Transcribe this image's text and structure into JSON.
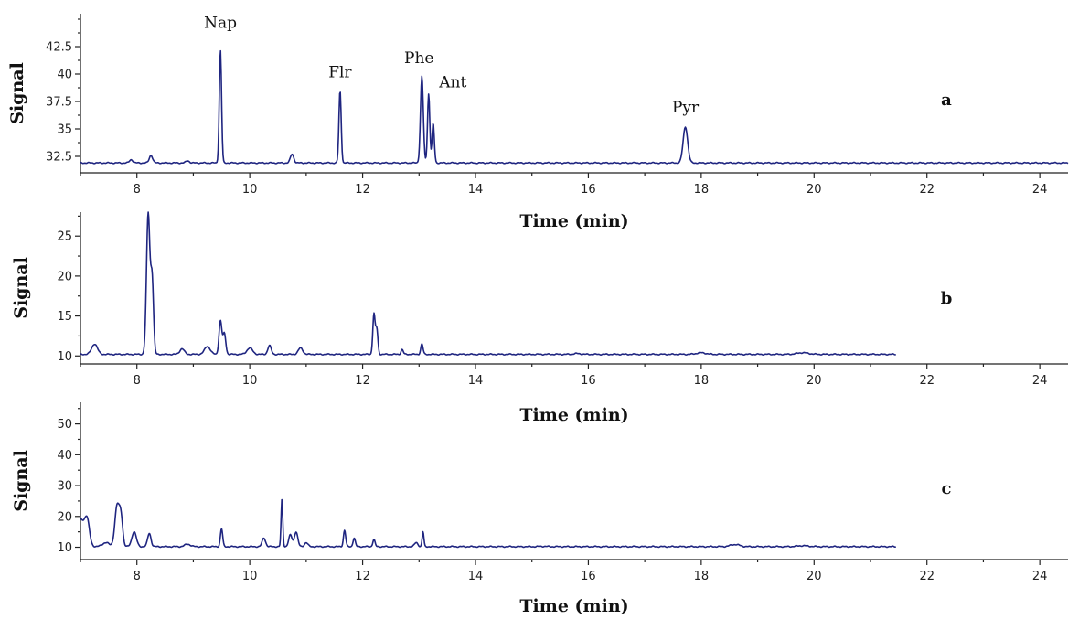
{
  "chart_data": [
    {
      "type": "line",
      "panel": "a",
      "xlabel": "Time (min)",
      "ylabel": "Signal",
      "xlim": [
        7,
        24.5
      ],
      "ylim": [
        31,
        45.5
      ],
      "xticks": [
        8,
        10,
        12,
        14,
        16,
        18,
        20,
        22,
        24
      ],
      "yticks": [
        32.5,
        35,
        37.5,
        40,
        42.5
      ],
      "yticklabels": [
        "32.5",
        "35",
        "37.5",
        "40",
        "42.5"
      ],
      "baseline": 31.9,
      "x_end": 24.5,
      "peaks": [
        {
          "x": 7.9,
          "y": 32.2,
          "w": 0.03
        },
        {
          "x": 8.25,
          "y": 32.6,
          "w": 0.03
        },
        {
          "x": 8.9,
          "y": 32.1,
          "w": 0.03
        },
        {
          "x": 9.48,
          "y": 42.2,
          "w": 0.02
        },
        {
          "x": 10.75,
          "y": 32.7,
          "w": 0.03
        },
        {
          "x": 11.6,
          "y": 38.5,
          "w": 0.02
        },
        {
          "x": 13.05,
          "y": 39.8,
          "w": 0.025
        },
        {
          "x": 13.17,
          "y": 38.2,
          "w": 0.02
        },
        {
          "x": 13.25,
          "y": 35.5,
          "w": 0.02
        },
        {
          "x": 17.72,
          "y": 35.2,
          "w": 0.04
        }
      ],
      "annotations": [
        {
          "text": "Nap",
          "x": 9.48,
          "y": 44.2
        },
        {
          "text": "Flr",
          "x": 11.6,
          "y": 39.7
        },
        {
          "text": "Phe",
          "x": 13.0,
          "y": 41.0
        },
        {
          "text": "Ant",
          "x": 13.6,
          "y": 38.8
        },
        {
          "text": "Pyr",
          "x": 17.72,
          "y": 36.5
        }
      ],
      "panel_label": "a"
    },
    {
      "type": "line",
      "panel": "b",
      "xlabel": "Time (min)",
      "ylabel": "Signal",
      "xlim": [
        7,
        24.5
      ],
      "ylim": [
        9,
        28
      ],
      "xticks": [
        8,
        10,
        12,
        14,
        16,
        18,
        20,
        22,
        24
      ],
      "yticks": [
        10,
        15,
        20,
        25
      ],
      "yticklabels": [
        "10",
        "15",
        "20",
        "25"
      ],
      "baseline": 10.2,
      "x_end": 21.45,
      "peaks": [
        {
          "x": 7.25,
          "y": 11.5,
          "w": 0.05
        },
        {
          "x": 8.2,
          "y": 27.8,
          "w": 0.03
        },
        {
          "x": 8.27,
          "y": 19.5,
          "w": 0.025
        },
        {
          "x": 8.8,
          "y": 10.9,
          "w": 0.04
        },
        {
          "x": 9.25,
          "y": 11.2,
          "w": 0.05
        },
        {
          "x": 9.48,
          "y": 14.4,
          "w": 0.025
        },
        {
          "x": 9.55,
          "y": 12.8,
          "w": 0.025
        },
        {
          "x": 10.0,
          "y": 11.0,
          "w": 0.05
        },
        {
          "x": 10.35,
          "y": 11.3,
          "w": 0.03
        },
        {
          "x": 10.9,
          "y": 11.0,
          "w": 0.04
        },
        {
          "x": 12.2,
          "y": 15.2,
          "w": 0.02
        },
        {
          "x": 12.25,
          "y": 13.4,
          "w": 0.02
        },
        {
          "x": 12.7,
          "y": 10.8,
          "w": 0.02
        },
        {
          "x": 13.05,
          "y": 11.5,
          "w": 0.02
        },
        {
          "x": 15.8,
          "y": 10.3,
          "w": 0.06
        },
        {
          "x": 18.0,
          "y": 10.4,
          "w": 0.08
        },
        {
          "x": 19.8,
          "y": 10.4,
          "w": 0.1
        }
      ],
      "annotations": [],
      "panel_label": "b"
    },
    {
      "type": "line",
      "panel": "c",
      "xlabel": "Time (min)",
      "ylabel": "Signal",
      "xlim": [
        7,
        24.5
      ],
      "ylim": [
        6,
        57
      ],
      "xticks": [
        8,
        10,
        12,
        14,
        16,
        18,
        20,
        22,
        24
      ],
      "yticks": [
        10,
        20,
        30,
        40,
        50
      ],
      "yticklabels": [
        "10",
        "20",
        "30",
        "40",
        "50"
      ],
      "baseline": 10.2,
      "x_end": 21.45,
      "peaks": [
        {
          "x": 7.0,
          "y": 19.0,
          "w": 0.08
        },
        {
          "x": 7.12,
          "y": 17.0,
          "w": 0.04
        },
        {
          "x": 7.45,
          "y": 11.5,
          "w": 0.06
        },
        {
          "x": 7.65,
          "y": 23.5,
          "w": 0.04
        },
        {
          "x": 7.72,
          "y": 19.0,
          "w": 0.03
        },
        {
          "x": 7.95,
          "y": 15.0,
          "w": 0.04
        },
        {
          "x": 8.22,
          "y": 14.5,
          "w": 0.03
        },
        {
          "x": 8.9,
          "y": 11.0,
          "w": 0.05
        },
        {
          "x": 9.5,
          "y": 16.0,
          "w": 0.02
        },
        {
          "x": 10.25,
          "y": 13.0,
          "w": 0.03
        },
        {
          "x": 10.57,
          "y": 25.5,
          "w": 0.015
        },
        {
          "x": 10.72,
          "y": 14.0,
          "w": 0.03
        },
        {
          "x": 10.82,
          "y": 15.0,
          "w": 0.03
        },
        {
          "x": 11.0,
          "y": 11.5,
          "w": 0.03
        },
        {
          "x": 11.68,
          "y": 15.5,
          "w": 0.02
        },
        {
          "x": 11.85,
          "y": 13.0,
          "w": 0.02
        },
        {
          "x": 12.2,
          "y": 12.5,
          "w": 0.02
        },
        {
          "x": 12.95,
          "y": 11.5,
          "w": 0.03
        },
        {
          "x": 13.07,
          "y": 15.0,
          "w": 0.015
        },
        {
          "x": 15.2,
          "y": 10.3,
          "w": 0.06
        },
        {
          "x": 18.6,
          "y": 10.9,
          "w": 0.08
        },
        {
          "x": 19.8,
          "y": 10.5,
          "w": 0.1
        }
      ],
      "annotations": [],
      "panel_label": "c"
    }
  ]
}
